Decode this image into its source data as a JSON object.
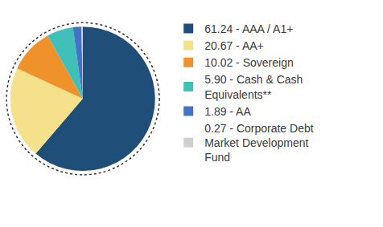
{
  "chart_data": {
    "type": "pie",
    "categories": [
      "61.24 - AAA / A1+",
      "20.67 - AA+",
      "10.02 - Sovereign",
      "5.90 - Cash & Cash Equivalents**",
      "1.89 - AA",
      "0.27 - Corporate Debt Market Development Fund"
    ],
    "values": [
      61.24,
      20.67,
      10.02,
      5.9,
      1.89,
      0.27
    ],
    "colors": [
      "#1f4e79",
      "#f5e08c",
      "#f0922b",
      "#40c0b8",
      "#4472c4",
      "#cfcfcf"
    ],
    "legend": "right"
  }
}
